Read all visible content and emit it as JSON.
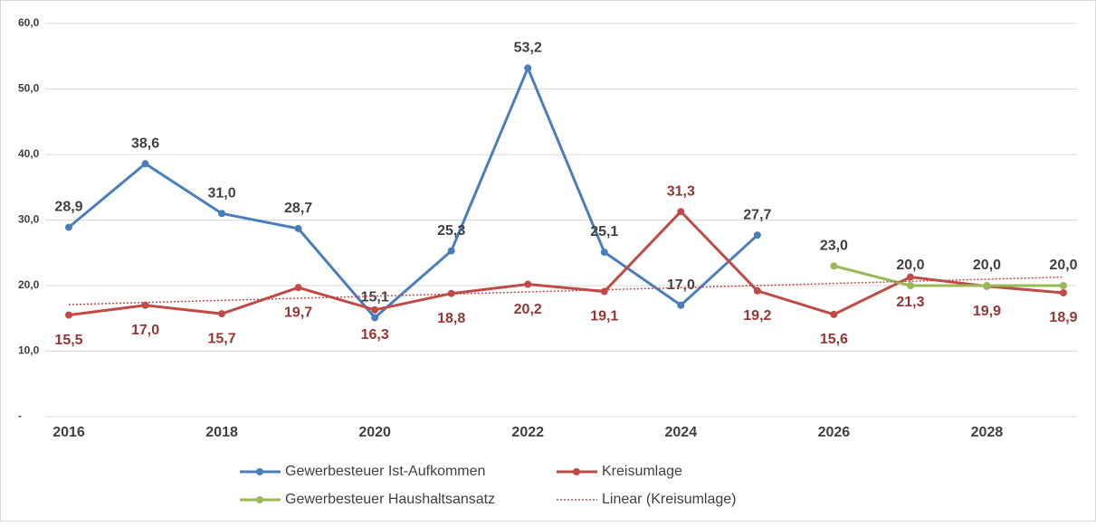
{
  "chart_data": {
    "type": "line",
    "x": [
      2016,
      2017,
      2018,
      2019,
      2020,
      2021,
      2022,
      2023,
      2024,
      2025,
      2026,
      2027,
      2028,
      2029
    ],
    "xlim": [
      2016,
      2029
    ],
    "xticks": [
      2016,
      2018,
      2020,
      2022,
      2024,
      2026,
      2028
    ],
    "ylim": [
      0,
      60
    ],
    "yticks": [
      {
        "value": 0,
        "label": "-"
      },
      {
        "value": 10,
        "label": "10,0"
      },
      {
        "value": 20,
        "label": "20,0"
      },
      {
        "value": 30,
        "label": "30,0"
      },
      {
        "value": 40,
        "label": "40,0"
      },
      {
        "value": 50,
        "label": "50,0"
      },
      {
        "value": 60,
        "label": "60,0"
      }
    ],
    "grid": true,
    "legend": "bottom",
    "series": [
      {
        "name": "Gewerbesteuer Ist-Aufkommen",
        "color": "#4a7ebb",
        "label_color": "#404040",
        "values": [
          28.9,
          38.6,
          31.0,
          28.7,
          15.1,
          25.3,
          53.2,
          25.1,
          17.0,
          27.7,
          null,
          null,
          null,
          null
        ],
        "value_labels": [
          "28,9",
          "38,6",
          "31,0",
          "28,7",
          "15,1",
          "25,3",
          "53,2",
          "25,1",
          "17,0",
          "27,7",
          null,
          null,
          null,
          null
        ]
      },
      {
        "name": "Kreisumlage",
        "color": "#be4b48",
        "label_color": "#943634",
        "values": [
          15.5,
          17.0,
          15.7,
          19.7,
          16.3,
          18.8,
          20.2,
          19.1,
          31.3,
          19.2,
          15.6,
          21.3,
          19.9,
          18.9
        ],
        "value_labels": [
          "15,5",
          "17,0",
          "15,7",
          "19,7",
          "16,3",
          "18,8",
          "20,2",
          "19,1",
          "31,3",
          "19,2",
          "15,6",
          "21,3",
          "19,9",
          "18,9"
        ]
      },
      {
        "name": "Gewerbesteuer Haushaltsansatz",
        "color": "#98b954",
        "label_color": "#404040",
        "values": [
          null,
          null,
          null,
          null,
          null,
          null,
          null,
          null,
          null,
          null,
          23.0,
          20.0,
          20.0,
          20.0
        ],
        "value_labels": [
          null,
          null,
          null,
          null,
          null,
          null,
          null,
          null,
          null,
          null,
          "23,0",
          "20,0",
          "20,0",
          "20,0"
        ]
      },
      {
        "name": "Linear (Kreisumlage)",
        "color": "#be4b48",
        "dashed": true,
        "x": [
          2016,
          2029
        ],
        "values": [
          17.1,
          21.3
        ]
      }
    ]
  }
}
